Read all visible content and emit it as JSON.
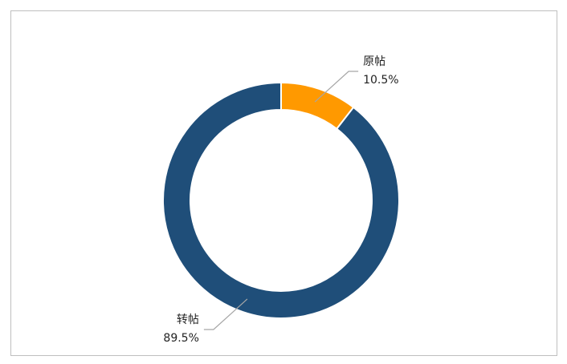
{
  "chart_data": {
    "type": "donut",
    "categories": [
      "原帖",
      "转帖"
    ],
    "values": [
      10.5,
      89.5
    ],
    "value_labels": [
      "10.5%",
      "89.5%"
    ],
    "colors": [
      "#ff9900",
      "#1f4e79"
    ]
  }
}
